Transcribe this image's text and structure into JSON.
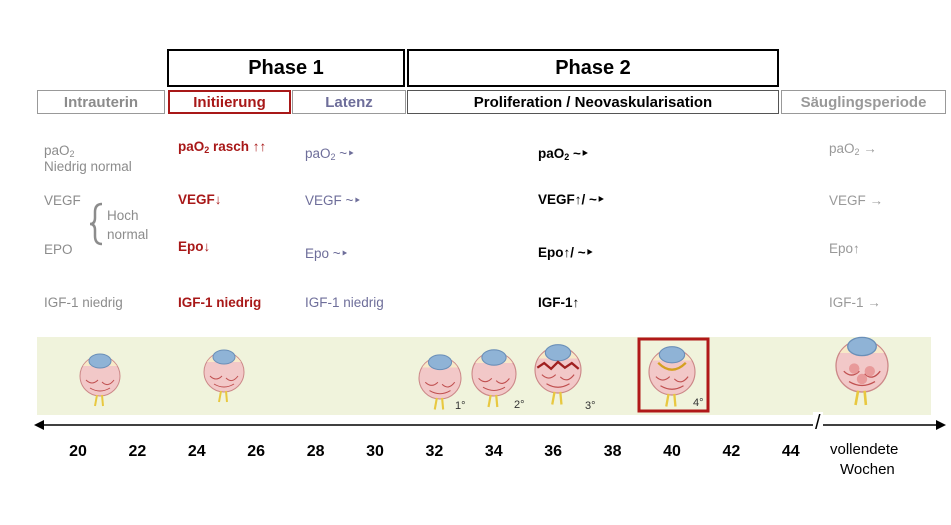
{
  "phases": {
    "phase1": "Phase 1",
    "phase2": "Phase 2"
  },
  "periods": {
    "intrauterin": "Intrauterin",
    "initiierung": "Initiierung",
    "latenz": "Latenz",
    "proliferation": "Proliferation / Neovaskularisation",
    "saeuglingsperiode": "Säuglingsperiode"
  },
  "intrauterin": {
    "pao2": "paO",
    "pao2_sub": "2",
    "niedrig_normal": "Niedrig normal",
    "vegf": "VEGF",
    "epo": "EPO",
    "hoch": "Hoch",
    "normal": "normal",
    "igf": "IGF-1 niedrig"
  },
  "initiierung": {
    "pao2": "paO",
    "pao2_sub": "2",
    "pao2_rest": " rasch ↑↑",
    "vegf": "VEGF↓",
    "epo": "Epo↓",
    "igf": "IGF-1 niedrig"
  },
  "latenz": {
    "pao2": "paO",
    "pao2_sub": "2",
    "pao2_rest": " ~‣",
    "vegf": "VEGF ~‣",
    "epo": "Epo ~‣",
    "igf": "IGF-1 niedrig"
  },
  "proliferation": {
    "pao2": "paO",
    "pao2_sub": "2",
    "pao2_rest": " ~‣",
    "vegf": "VEGF↑/ ~‣",
    "epo": "Epo↑/ ~‣",
    "igf": "IGF-1↑"
  },
  "saeugling": {
    "pao2": "paO",
    "pao2_sub": "2",
    "pao2_rest": " →",
    "vegf": "VEGF →",
    "epo": "Epo↑",
    "igf": "IGF-1 →"
  },
  "stages": [
    "1°",
    "2°",
    "3°",
    "4°"
  ],
  "axis": {
    "ticks": [
      "20",
      "22",
      "24",
      "26",
      "28",
      "30",
      "32",
      "34",
      "36",
      "38",
      "40",
      "42",
      "44"
    ],
    "break_mark": "/",
    "unit_line1": "vollendete",
    "unit_line2": "Wochen"
  },
  "colors": {
    "band": "#f0f3dc",
    "highlight": "#b01818",
    "initiierung": "#a81818",
    "latenz": "#6e6e9a"
  }
}
